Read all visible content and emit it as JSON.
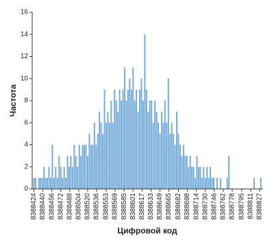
{
  "chart_data": {
    "type": "bar",
    "xlabel": "Цифровой код",
    "ylabel": "Частота",
    "color": "#5b9bd5",
    "x": [
      8388424,
      8388427,
      8388430,
      8388433,
      8388436,
      8388439,
      8388442,
      8388445,
      8388448,
      8388451,
      8388454,
      8388457,
      8388460,
      8388463,
      8388466,
      8388469,
      8388472,
      8388475,
      8388478,
      8388481,
      8388484,
      8388487,
      8388490,
      8388493,
      8388496,
      8388499,
      8388502,
      8388505,
      8388508,
      8388511,
      8388514,
      8388517,
      8388520,
      8388523,
      8388526,
      8388529,
      8388532,
      8388535,
      8388538,
      8388541,
      8388544,
      8388547,
      8388550,
      8388553,
      8388556,
      8388559,
      8388562,
      8388565,
      8388568,
      8388571,
      8388574,
      8388577,
      8388580,
      8388583,
      8388586,
      8388589,
      8388592,
      8388595,
      8388598,
      8388601,
      8388604,
      8388607,
      8388610,
      8388613,
      8388616,
      8388619,
      8388622,
      8388625,
      8388628,
      8388631,
      8388634,
      8388637,
      8388640,
      8388643,
      8388646,
      8388649,
      8388652,
      8388655,
      8388658,
      8388661,
      8388664,
      8388667,
      8388670,
      8388673,
      8388676,
      8388679,
      8388682,
      8388685,
      8388688,
      8388691,
      8388694,
      8388697,
      8388700,
      8388703,
      8388706,
      8388709,
      8388712,
      8388715,
      8388718,
      8388721,
      8388724,
      8388727,
      8388730,
      8388733,
      8388736,
      8388739,
      8388742,
      8388745,
      8388748,
      8388751,
      8388754,
      8388757,
      8388760,
      8388763,
      8388766,
      8388769,
      8388772,
      8388775,
      8388778,
      8388781,
      8388784,
      8388787,
      8388790,
      8388793,
      8388796,
      8388799,
      8388802,
      8388805,
      8388808,
      8388811,
      8388814,
      8388817,
      8388820,
      8388823,
      8388826,
      8388829
    ],
    "values": [
      1,
      1,
      0,
      1,
      1,
      1,
      2,
      1,
      1,
      2,
      1,
      4,
      1,
      2,
      1,
      3,
      2,
      1,
      2,
      1,
      3,
      2,
      3,
      2,
      4,
      3,
      2,
      4,
      3,
      4,
      4,
      4,
      3,
      5,
      4,
      4,
      6,
      4,
      5,
      7,
      6,
      5,
      9,
      6,
      7,
      6,
      8,
      6,
      9,
      8,
      7,
      9,
      8,
      9,
      11,
      8,
      9,
      10,
      9,
      11,
      8,
      9,
      7,
      9,
      10,
      8,
      14,
      9,
      7,
      8,
      8,
      6,
      8,
      7,
      6,
      5,
      7,
      6,
      8,
      6,
      10,
      5,
      6,
      5,
      4,
      7,
      5,
      4,
      3,
      4,
      3,
      3,
      2,
      3,
      2,
      2,
      1,
      3,
      2,
      2,
      1,
      2,
      1,
      2,
      1,
      2,
      1,
      1,
      0,
      1,
      0,
      1,
      0,
      0,
      0,
      1,
      3,
      0,
      0,
      0,
      0,
      0,
      0,
      0,
      0,
      0,
      0,
      0,
      0,
      0,
      0,
      1,
      0,
      0,
      0,
      1
    ],
    "xlim": [
      8388421,
      8388833
    ],
    "xticks": [
      8388424,
      8388440,
      8388456,
      8388472,
      8388488,
      8388504,
      8388520,
      8388536,
      8388553,
      8388569,
      8388585,
      8388601,
      8388617,
      8388633,
      8388649,
      8388665,
      8388682,
      8388698,
      8388714,
      8388730,
      8388746,
      8388762,
      8388778,
      8388795,
      8388811,
      8388827
    ],
    "ylim": [
      0,
      16
    ],
    "yticks": [
      0,
      2,
      4,
      6,
      8,
      10,
      12,
      14,
      16
    ]
  }
}
